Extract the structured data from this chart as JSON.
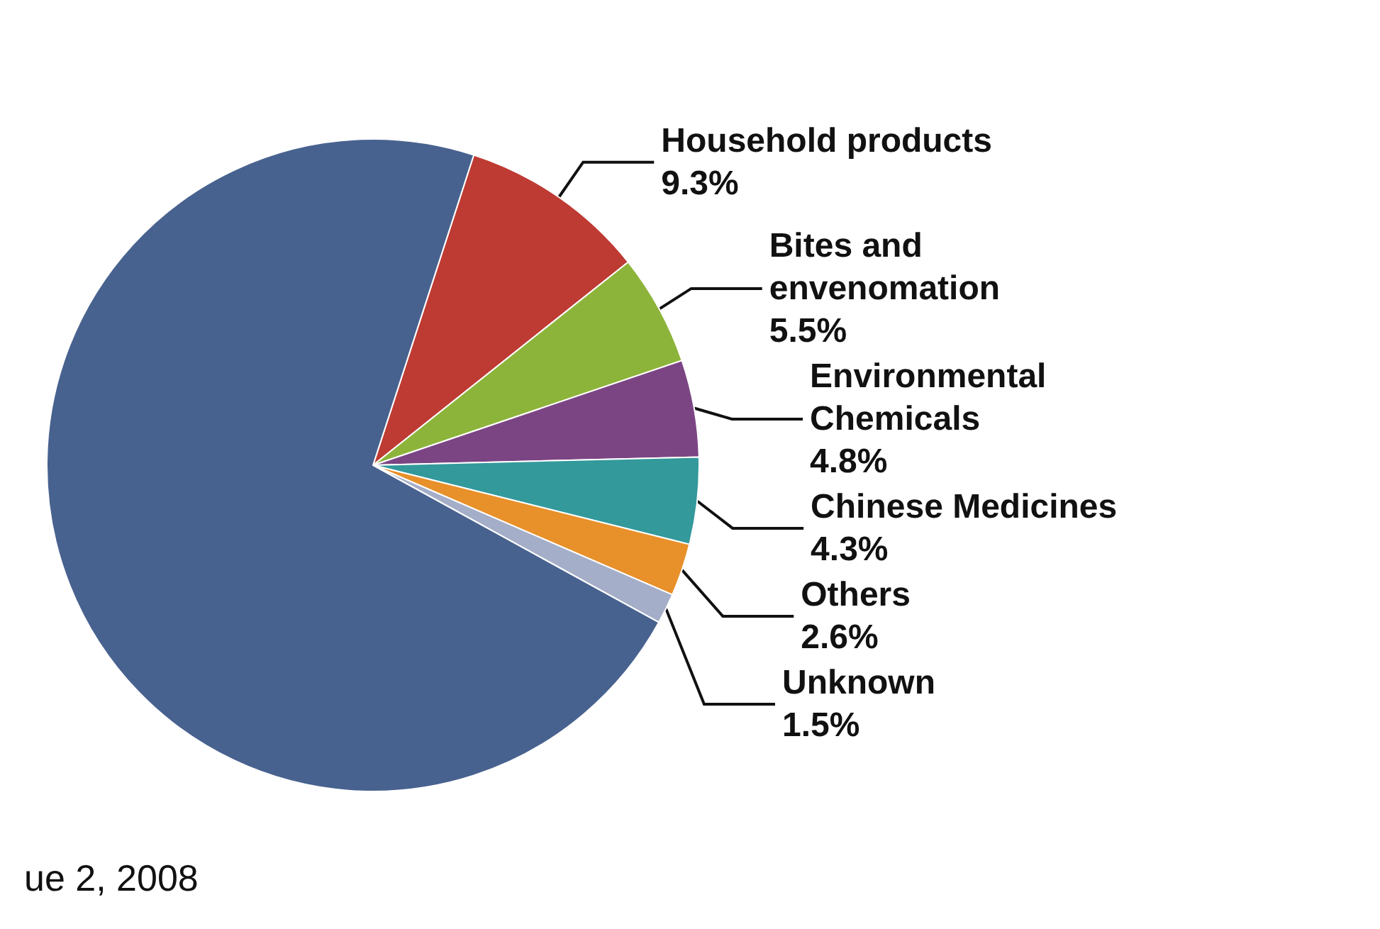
{
  "chart_data": {
    "type": "pie",
    "categories": [
      "Household products",
      "Bites and envenomation",
      "Environmental Chemicals",
      "Chinese Medicines",
      "Others",
      "Unknown",
      null
    ],
    "values": [
      9.3,
      5.5,
      4.8,
      4.3,
      2.6,
      1.5,
      72.0
    ],
    "colors": [
      "#be3b33",
      "#8db43a",
      "#7b4583",
      "#33999b",
      "#e8902a",
      "#a5aec8",
      "#48628f"
    ],
    "value_labels": [
      "9.3%",
      "5.5%",
      "4.8%",
      "4.3%",
      "2.6%",
      "1.5%",
      null
    ],
    "annotations": [
      "ue 2, 2008"
    ]
  }
}
